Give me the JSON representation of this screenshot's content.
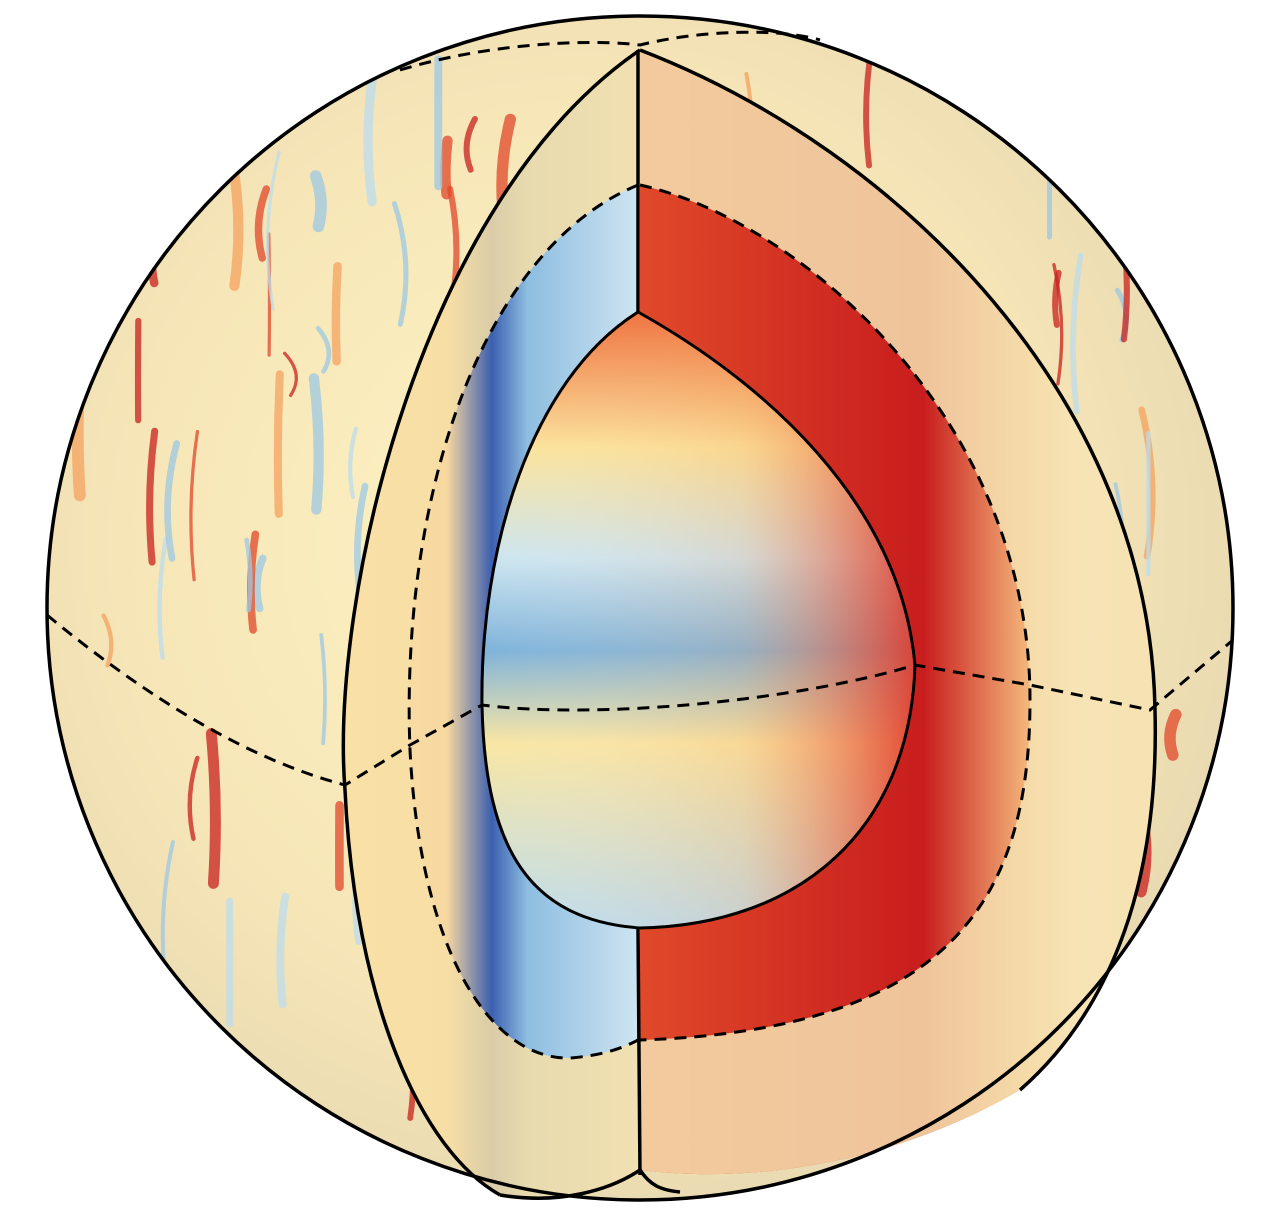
{
  "figure": {
    "colormap": [
      "#2b4fa8",
      "#6fa8d6",
      "#cfe6f2",
      "#fdf6c0",
      "#f9c97a",
      "#e9602f",
      "#c3161a"
    ],
    "outline_color": "#000000",
    "background": "#ffffff"
  }
}
